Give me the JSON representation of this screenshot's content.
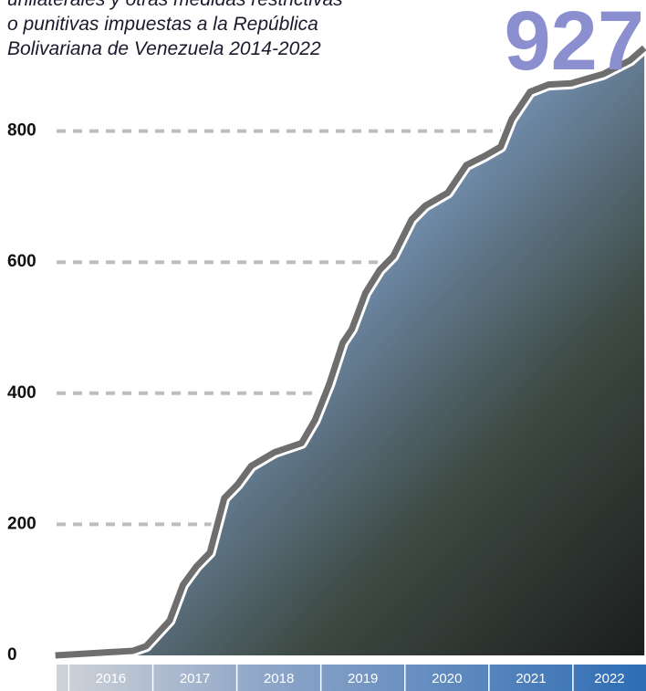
{
  "chart_data": {
    "type": "line",
    "title": [
      "unilaterales y otras medidas restrictivas",
      "o punitivas impuestas a la República",
      "Bolivariana de Venezuela 2014-2022"
    ],
    "annotation": "927",
    "x": [
      2015.84,
      2016.76,
      2016.92,
      2017.2,
      2017.36,
      2017.52,
      2017.68,
      2017.85,
      2018.01,
      2018.17,
      2018.45,
      2018.77,
      2018.93,
      2019.1,
      2019.26,
      2019.37,
      2019.53,
      2019.7,
      2019.86,
      2020.08,
      2020.24,
      2020.51,
      2020.73,
      2020.95,
      2021.14,
      2021.27,
      2021.49,
      2021.71,
      2021.98,
      2022.36,
      2022.68,
      2022.85
    ],
    "series": [
      {
        "color": "#6e6e6e",
        "values": [
          0,
          7,
          14,
          53,
          108,
          136,
          157,
          240,
          261,
          289,
          310,
          324,
          359,
          414,
          477,
          498,
          553,
          588,
          609,
          665,
          686,
          706,
          748,
          762,
          776,
          818,
          860,
          871,
          873,
          887,
          908,
          927
        ]
      }
    ],
    "xlim": [
      2015.8,
      2023
    ],
    "xticks": [
      {
        "value": 2016,
        "label": "2016"
      },
      {
        "value": 2017,
        "label": "2017"
      },
      {
        "value": 2018,
        "label": "2018"
      },
      {
        "value": 2019,
        "label": "2019"
      },
      {
        "value": 2020,
        "label": "2020"
      },
      {
        "value": 2021,
        "label": "2021"
      },
      {
        "value": 2022,
        "label": "2022"
      }
    ],
    "ylim": [
      0,
      1000
    ],
    "yticks": [
      0,
      200,
      400,
      600,
      800
    ],
    "grid": true
  }
}
